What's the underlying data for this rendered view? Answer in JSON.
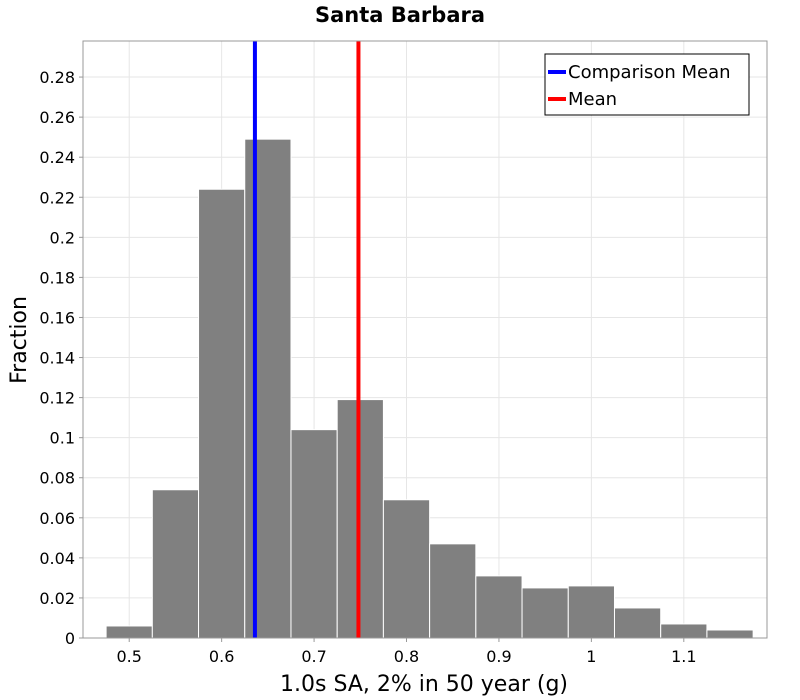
{
  "chart_data": {
    "type": "bar",
    "title": "Santa Barbara",
    "xlabel": "1.0s SA, 2% in 50 year (g)",
    "ylabel": "Fraction",
    "xlim": [
      0.45,
      1.19
    ],
    "ylim": [
      0,
      0.298
    ],
    "bin_width": 0.05,
    "bins": [
      {
        "x": 0.5,
        "value": 0.006
      },
      {
        "x": 0.55,
        "value": 0.074
      },
      {
        "x": 0.6,
        "value": 0.224
      },
      {
        "x": 0.65,
        "value": 0.249
      },
      {
        "x": 0.7,
        "value": 0.104
      },
      {
        "x": 0.75,
        "value": 0.119
      },
      {
        "x": 0.8,
        "value": 0.069
      },
      {
        "x": 0.85,
        "value": 0.047
      },
      {
        "x": 0.9,
        "value": 0.031
      },
      {
        "x": 0.95,
        "value": 0.025
      },
      {
        "x": 1.0,
        "value": 0.026
      },
      {
        "x": 1.05,
        "value": 0.015
      },
      {
        "x": 1.1,
        "value": 0.007
      },
      {
        "x": 1.15,
        "value": 0.004
      }
    ],
    "x_ticks": [
      "0.5",
      "0.6",
      "0.7",
      "0.8",
      "0.9",
      "1",
      "1.1"
    ],
    "x_tick_values": [
      0.5,
      0.6,
      0.7,
      0.8,
      0.9,
      1.0,
      1.1
    ],
    "y_ticks": [
      "0",
      "0.02",
      "0.04",
      "0.06",
      "0.08",
      "0.1",
      "0.12",
      "0.14",
      "0.16",
      "0.18",
      "0.2",
      "0.22",
      "0.24",
      "0.26",
      "0.28"
    ],
    "y_tick_values": [
      0,
      0.02,
      0.04,
      0.06,
      0.08,
      0.1,
      0.12,
      0.14,
      0.16,
      0.18,
      0.2,
      0.22,
      0.24,
      0.26,
      0.28
    ],
    "vlines": [
      {
        "name": "Comparison Mean",
        "x": 0.636,
        "color": "#0000ff"
      },
      {
        "name": "Mean",
        "x": 0.748,
        "color": "#ff0000"
      }
    ],
    "bar_color": "#808080",
    "grid": true,
    "legend_position": "top-right"
  }
}
